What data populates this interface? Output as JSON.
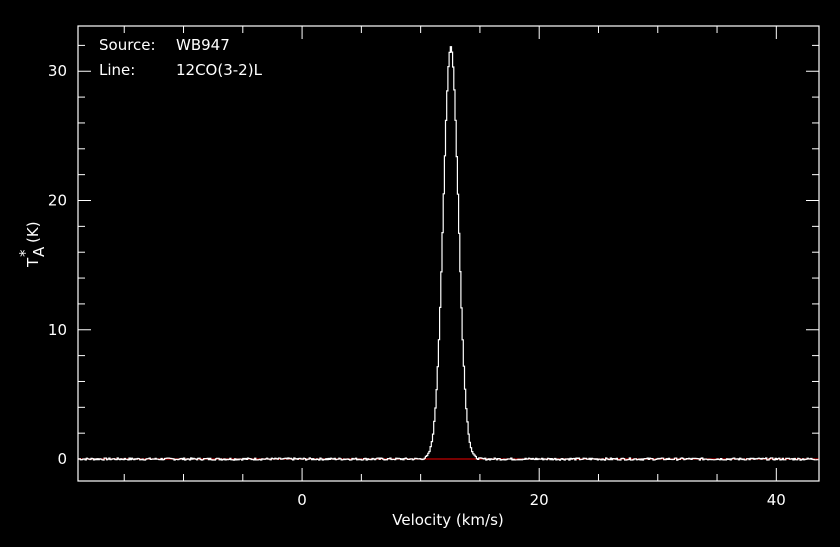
{
  "chart_data": {
    "type": "line",
    "source_label": "Source:",
    "source_value": "WB947",
    "line_label": "Line:",
    "line_value": "12CO(3-2)L",
    "xlabel": "Velocity (km/s)",
    "ylabel": "T",
    "ylabel_sup": "*",
    "ylabel_sub": "A",
    "ylabel_unit": "(K)",
    "xlim": [
      -18.9,
      43.6
    ],
    "ylim": [
      -1.7,
      33.5
    ],
    "xticks_major": [
      0,
      20,
      40
    ],
    "xtick_labels": [
      "0",
      "20",
      "40"
    ],
    "xticks_minor": [
      -15,
      -10,
      -5,
      5,
      10,
      15,
      25,
      30,
      35
    ],
    "yticks_major": [
      0,
      10,
      20,
      30
    ],
    "ytick_labels": [
      "0",
      "10",
      "20",
      "30"
    ],
    "yticks_minor": [
      2,
      4,
      6,
      8,
      12,
      14,
      16,
      18,
      22,
      24,
      26,
      28,
      32
    ],
    "baseline": {
      "y": 0,
      "color": "#c00000"
    },
    "series": [
      {
        "color": "#ffffff",
        "peak_velocity": 12.5,
        "peak_value": 31.9,
        "fwhm_kms": 1.5,
        "noise_rms": 0.08
      }
    ],
    "grid": false
  }
}
